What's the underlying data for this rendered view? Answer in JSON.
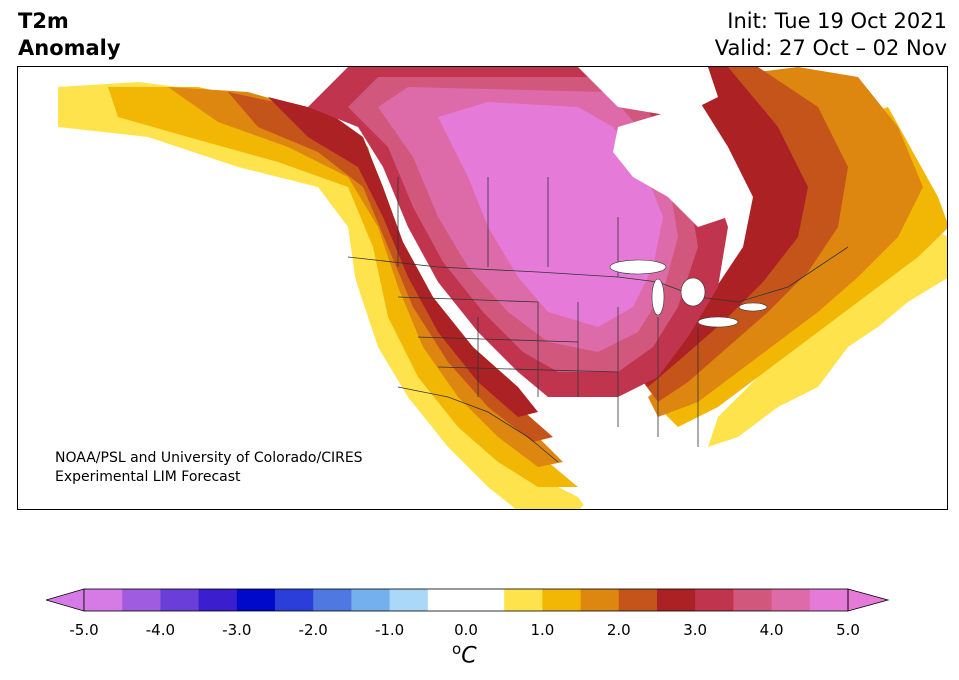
{
  "header": {
    "title_line1": "T2m",
    "title_line2": "Anomaly",
    "init": "Init: Tue 19 Oct 2021",
    "valid": "Valid: 27 Oct – 02 Nov"
  },
  "credit": {
    "line1": "NOAA/PSL and University of Colorado/CIRES",
    "line2": "Experimental LIM Forecast"
  },
  "colorbar": {
    "tick_labels": [
      "-5.0",
      "-4.0",
      "-3.0",
      "-2.0",
      "-1.0",
      "0.0",
      "1.0",
      "2.0",
      "3.0",
      "4.0",
      "5.0"
    ],
    "unit_base": "C",
    "unit_sup": "o",
    "colors": [
      "#d67ae6",
      "#a05ce0",
      "#6a3fd9",
      "#3b1fcf",
      "#0008c9",
      "#2a3fd9",
      "#4f78e0",
      "#75b0ee",
      "#a9d8f8",
      "#ffffff",
      "#ffffff",
      "#ffe34d",
      "#f2b705",
      "#de8710",
      "#c4541a",
      "#ab2124",
      "#c0354d",
      "#d1577c",
      "#dd6aa9",
      "#e57ad9"
    ],
    "extend_low_color": "#d67ae6",
    "extend_high_color": "#e57ad9"
  },
  "map": {
    "variable": "2m temperature anomaly",
    "region": "North America",
    "anomaly_fill_colors": {
      "plus_0_5": "#ffe34d",
      "plus_1": "#f2b705",
      "plus_1_5": "#de8710",
      "plus_2": "#c4541a",
      "plus_2_5": "#ab2124",
      "plus_3": "#c0354d",
      "plus_3_5": "#d1577c",
      "plus_4": "#dd6aa9",
      "plus_4_5": "#e57ad9"
    }
  }
}
